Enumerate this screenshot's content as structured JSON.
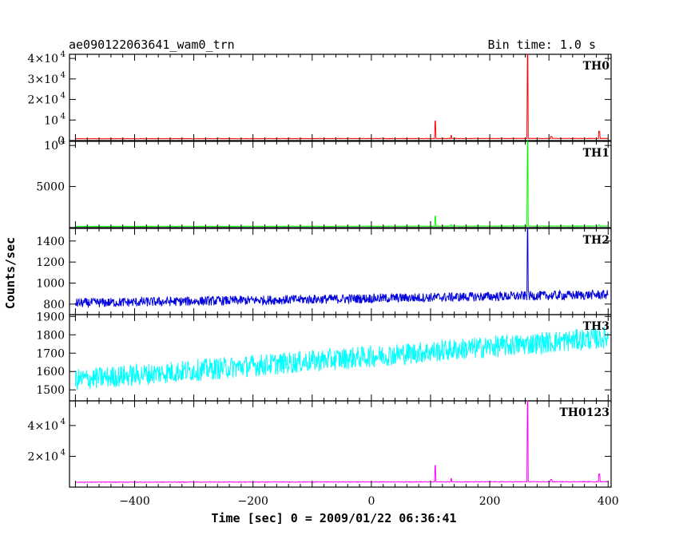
{
  "header": {
    "title": "ae090122063641_wam0_trn",
    "bin_time": "Bin time: 1.0 s"
  },
  "chart_data": {
    "type": "line",
    "xlabel": "Time [sec] 0 = 2009/01/22 06:36:41",
    "ylabel": "Counts/sec",
    "xlim": [
      -510,
      405
    ],
    "x_ticks": [
      {
        "value": -400,
        "label": "−400"
      },
      {
        "value": -200,
        "label": "−200"
      },
      {
        "value": 0,
        "label": "0"
      },
      {
        "value": 200,
        "label": "200"
      },
      {
        "value": 400,
        "label": "400"
      }
    ],
    "panels": [
      {
        "name": "TH0",
        "color": "#ff0000",
        "ylim": [
          0,
          42000
        ],
        "y_ticks": [
          {
            "value": 0,
            "label": "0"
          },
          {
            "value": 10000,
            "label": "10",
            "exp": "4"
          },
          {
            "value": 20000,
            "label": "2×10",
            "exp": "4"
          },
          {
            "value": 30000,
            "label": "3×10",
            "exp": "4"
          },
          {
            "value": 40000,
            "label": "4×10",
            "exp": "4"
          }
        ],
        "base": 900,
        "noise": 200,
        "trend": 150,
        "spikes": [
          [
            108,
            9500
          ],
          [
            135,
            2500
          ],
          [
            264,
            42000
          ],
          [
            304,
            2000
          ],
          [
            385,
            4500
          ]
        ]
      },
      {
        "name": "TH1",
        "color": "#00ff00",
        "ylim": [
          0,
          10500
        ],
        "y_ticks": [
          {
            "value": 5000,
            "label": "5000"
          },
          {
            "value": 10000,
            "label": "10",
            "exp": "4"
          }
        ],
        "base": 150,
        "noise": 60,
        "trend": 40,
        "spikes": [
          [
            108,
            1400
          ],
          [
            135,
            350
          ],
          [
            264,
            10500
          ],
          [
            385,
            300
          ]
        ]
      },
      {
        "name": "TH2",
        "color": "#0000dd",
        "ylim": [
          700,
          1520
        ],
        "y_ticks": [
          {
            "value": 800,
            "label": "800"
          },
          {
            "value": 1000,
            "label": "1000"
          },
          {
            "value": 1200,
            "label": "1200"
          },
          {
            "value": 1400,
            "label": "1400"
          }
        ],
        "base": 810,
        "noise": 90,
        "trend": 80,
        "spikes": [
          [
            264,
            1520
          ]
        ]
      },
      {
        "name": "TH3",
        "color": "#00ffff",
        "ylim": [
          1440,
          1910
        ],
        "y_ticks": [
          {
            "value": 1500,
            "label": "1500"
          },
          {
            "value": 1600,
            "label": "1600"
          },
          {
            "value": 1700,
            "label": "1700"
          },
          {
            "value": 1800,
            "label": "1800"
          },
          {
            "value": 1900,
            "label": "1900"
          }
        ],
        "base": 1555,
        "noise": 120,
        "trend": 230,
        "spikes": []
      },
      {
        "name": "TH0123",
        "color": "#ff00ff",
        "ylim": [
          0,
          56000
        ],
        "y_ticks": [
          {
            "value": 20000,
            "label": "2×10",
            "exp": "4"
          },
          {
            "value": 40000,
            "label": "4×10",
            "exp": "4"
          }
        ],
        "base": 3200,
        "noise": 400,
        "trend": 300,
        "spikes": [
          [
            108,
            14000
          ],
          [
            135,
            5500
          ],
          [
            264,
            56000
          ],
          [
            304,
            5000
          ],
          [
            385,
            8500
          ]
        ]
      }
    ]
  }
}
